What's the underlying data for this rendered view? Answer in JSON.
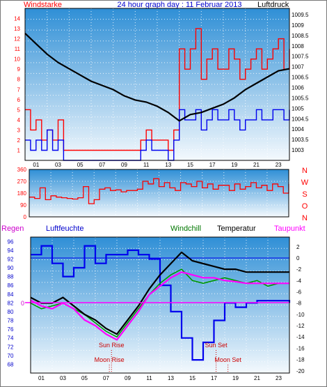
{
  "title": "24 hour graph day : 11 Februar 2013",
  "colors": {
    "red": "#ff0000",
    "blue": "#0000ee",
    "black": "#000000",
    "green": "#009900",
    "magenta": "#ff00ff",
    "sky_top": "#2f8fd6",
    "sky_bottom": "#f4f9fd",
    "grid_dot": "#ffffff",
    "tick_blue": "#0000cc"
  },
  "hour_labels": [
    "01",
    "03",
    "05",
    "07",
    "09",
    "11",
    "13",
    "15",
    "17",
    "19",
    "21",
    "23"
  ],
  "chart_data": [
    {
      "type": "line",
      "labels": {
        "left": "Windstarke",
        "center": "24 hour graph day : 11 Februar 2013",
        "right": "Luftdruck"
      },
      "x_range": [
        0,
        24
      ],
      "y_left": {
        "range": [
          0,
          15
        ],
        "ticks": [
          1,
          2,
          3,
          4,
          5,
          6,
          7,
          8,
          9,
          10,
          11,
          12,
          13,
          14
        ]
      },
      "y_right": {
        "range": [
          1002.5,
          1009.8
        ],
        "ticks": [
          "1003",
          "1003.5",
          "1004",
          "1004.5",
          "1005",
          "1005.5",
          "1006",
          "1006.5",
          "1007",
          "1007.5",
          "1008",
          "1008.5",
          "1009",
          "1009.5"
        ]
      },
      "series": [
        {
          "name": "Windstarke",
          "axis": "left",
          "x": [
            0,
            0.5,
            1.0,
            1.5,
            2.0,
            2.5,
            3.0,
            3.5,
            4.0,
            4.5,
            5.0,
            5.5,
            6.0,
            6.5,
            7.0,
            7.5,
            8.0,
            8.5,
            9.0,
            9.5,
            10.0,
            10.5,
            11.0,
            11.5,
            12.0,
            12.5,
            13.0,
            13.5,
            14.0,
            14.5,
            15.0,
            15.5,
            16.0,
            16.5,
            17.0,
            17.5,
            18.0,
            18.5,
            19.0,
            19.5,
            20.0,
            20.5,
            21.0,
            21.5,
            22.0,
            22.5,
            23.0,
            23.5,
            24.0
          ],
          "values": [
            5,
            3,
            4,
            2,
            3,
            2,
            4,
            1,
            1,
            1,
            1,
            1,
            1,
            1,
            1,
            1,
            1,
            1,
            1,
            1,
            1,
            2,
            3,
            2,
            2,
            2,
            1,
            3,
            11,
            9,
            11,
            13,
            8,
            10,
            11,
            9,
            9,
            11,
            10,
            8,
            9,
            10,
            11,
            9,
            10,
            11,
            12,
            9,
            11
          ]
        },
        {
          "name": "Boeen",
          "axis": "left",
          "x": [
            0,
            0.5,
            1.0,
            1.5,
            2.0,
            2.5,
            3.0,
            3.5,
            4.0,
            4.5,
            5.0,
            5.5,
            6.0,
            6.5,
            7.0,
            7.5,
            8.0,
            8.5,
            9.0,
            9.5,
            10.0,
            10.5,
            11.0,
            11.5,
            12.0,
            12.5,
            13.0,
            13.5,
            14.0,
            14.5,
            15.0,
            15.5,
            16.0,
            16.5,
            17.0,
            17.5,
            18.0,
            18.5,
            19.0,
            19.5,
            20.0,
            20.5,
            21.0,
            21.5,
            22.0,
            22.5,
            23.0,
            23.5,
            24.0
          ],
          "values": [
            2,
            1,
            2,
            1,
            3,
            1,
            2,
            0,
            0,
            0,
            0,
            0,
            0,
            0,
            0,
            0,
            0,
            0,
            0,
            0,
            0,
            1,
            2,
            1,
            1,
            1,
            0,
            2,
            5,
            4,
            4,
            5,
            3,
            4,
            5,
            4,
            4,
            5,
            4,
            3,
            4,
            4,
            5,
            4,
            4,
            5,
            5,
            4,
            5
          ]
        },
        {
          "name": "Luftdruck",
          "axis": "right",
          "x": [
            0,
            1,
            2,
            3,
            4,
            5,
            6,
            7,
            8,
            9,
            10,
            11,
            12,
            13,
            14,
            15,
            16,
            17,
            18,
            19,
            20,
            21,
            22,
            23,
            24
          ],
          "values": [
            1008.6,
            1008.1,
            1007.6,
            1007.2,
            1006.9,
            1006.6,
            1006.3,
            1006.1,
            1005.9,
            1005.6,
            1005.4,
            1005.3,
            1005.1,
            1004.8,
            1004.4,
            1004.7,
            1004.8,
            1005.0,
            1005.2,
            1005.5,
            1005.9,
            1006.2,
            1006.5,
            1006.8,
            1006.9
          ]
        }
      ]
    },
    {
      "type": "line",
      "x_range": [
        0,
        24
      ],
      "y_left": {
        "range": [
          0,
          360
        ],
        "ticks": [
          "0",
          "90",
          "180",
          "270",
          "360"
        ]
      },
      "compass_labels": [
        "N",
        "W",
        "S",
        "O",
        "N"
      ],
      "series": [
        {
          "name": "Windrichtung",
          "x": [
            0,
            0.5,
            1.0,
            1.5,
            2.0,
            2.5,
            3.0,
            3.5,
            4.0,
            4.5,
            5.0,
            5.5,
            6.0,
            6.5,
            7.0,
            7.5,
            8.0,
            8.5,
            9.0,
            9.5,
            10.0,
            10.5,
            11.0,
            11.5,
            12.0,
            12.5,
            13.0,
            13.5,
            14.0,
            14.5,
            15.0,
            15.5,
            16.0,
            16.5,
            17.0,
            17.5,
            18.0,
            18.5,
            19.0,
            19.5,
            20.0,
            20.5,
            21.0,
            21.5,
            22.0,
            22.5,
            23.0,
            23.5,
            24.0
          ],
          "values": [
            150,
            140,
            220,
            130,
            160,
            150,
            145,
            140,
            135,
            145,
            230,
            100,
            130,
            210,
            220,
            200,
            205,
            190,
            200,
            200,
            210,
            270,
            250,
            290,
            230,
            260,
            220,
            200,
            260,
            250,
            230,
            270,
            220,
            250,
            210,
            240,
            240,
            200,
            250,
            210,
            230,
            260,
            220,
            240,
            200,
            250,
            230,
            180,
            250
          ]
        }
      ]
    },
    {
      "type": "line",
      "labels": [
        "Regen",
        "Luftfeuchte",
        "Windchill",
        "Temperatur",
        "Taupunkt"
      ],
      "x_range": [
        0,
        24
      ],
      "y_left": {
        "range": [
          66,
          97
        ],
        "ticks": [
          "68",
          "70",
          "72",
          "74",
          "76",
          "78",
          "80",
          "82",
          "84",
          "86",
          "88",
          "90",
          "92",
          "94",
          "96"
        ]
      },
      "y_right": {
        "range": [
          -20.4,
          3.7
        ],
        "ticks": [
          "2",
          "0",
          "-2",
          "-4",
          "-6",
          "-8",
          "-10",
          "-12",
          "-14",
          "-16",
          "-18",
          "-20"
        ]
      },
      "rain_zero_label": "0",
      "series": [
        {
          "name": "Luftfeuchte",
          "axis": "left",
          "x": [
            0,
            1,
            2,
            3,
            4,
            5,
            6,
            7,
            8,
            9,
            10,
            11,
            12,
            13,
            14,
            15,
            16,
            17,
            18,
            19,
            20,
            21,
            22,
            23,
            24
          ],
          "values": [
            93,
            95,
            91,
            88,
            90,
            95,
            91,
            93,
            93,
            94,
            93,
            92,
            86,
            80,
            74,
            69,
            73,
            78,
            82,
            81,
            82,
            82.5,
            82.5,
            82.5,
            82
          ]
        },
        {
          "name": "Temperatur",
          "axis": "right",
          "x": [
            0,
            1,
            2,
            3,
            4,
            5,
            6,
            7,
            8,
            9,
            10,
            11,
            12,
            13,
            14,
            15,
            16,
            17,
            18,
            19,
            20,
            21,
            22,
            23,
            24
          ],
          "values": [
            -7.0,
            -8.0,
            -8.0,
            -7.0,
            -8.5,
            -10.0,
            -11.0,
            -12.5,
            -13.5,
            -11.0,
            -8.5,
            -5.5,
            -3.0,
            -1.0,
            1.0,
            -0.5,
            -1.0,
            -1.5,
            -2.0,
            -2.0,
            -2.5,
            -2.5,
            -2.5,
            -2.5,
            -2.5
          ]
        },
        {
          "name": "Windchill",
          "axis": "right",
          "x": [
            0,
            1,
            2,
            3,
            4,
            5,
            6,
            7,
            8,
            9,
            10,
            11,
            12,
            13,
            14,
            15,
            16,
            17,
            18,
            19,
            20,
            21,
            22,
            23,
            24
          ],
          "values": [
            -8.0,
            -9.0,
            -8.5,
            -8.0,
            -9.0,
            -10.0,
            -11.5,
            -13.0,
            -14.0,
            -11.5,
            -9.0,
            -6.5,
            -4.5,
            -3.0,
            -2.0,
            -4.0,
            -4.5,
            -4.0,
            -3.5,
            -4.0,
            -4.5,
            -4.0,
            -5.0,
            -4.5,
            -4.5
          ]
        },
        {
          "name": "Taupunkt",
          "axis": "right",
          "x": [
            0,
            1,
            2,
            3,
            4,
            5,
            6,
            7,
            8,
            9,
            10,
            11,
            12,
            13,
            14,
            15,
            16,
            17,
            18,
            19,
            20,
            21,
            22,
            23,
            24
          ],
          "values": [
            -7.5,
            -8.5,
            -9.0,
            -8.0,
            -9.0,
            -11.0,
            -12.0,
            -13.5,
            -14.5,
            -12.0,
            -9.5,
            -6.5,
            -5.0,
            -3.5,
            -2.5,
            -3.0,
            -3.5,
            -3.5,
            -4.0,
            -4.2,
            -4.5,
            -4.5,
            -4.5,
            -4.5,
            -4.5
          ]
        },
        {
          "name": "Regen",
          "axis": "rain",
          "x": [
            0,
            24
          ],
          "values": [
            0,
            0
          ]
        }
      ],
      "annotations": [
        {
          "text": "Sun Rise",
          "hour": 7.5
        },
        {
          "text": "Moon Rise",
          "hour": 7.3
        },
        {
          "text": "Sun Set",
          "hour": 17.2
        },
        {
          "text": "Moon Set",
          "hour": 18.3
        }
      ]
    }
  ]
}
